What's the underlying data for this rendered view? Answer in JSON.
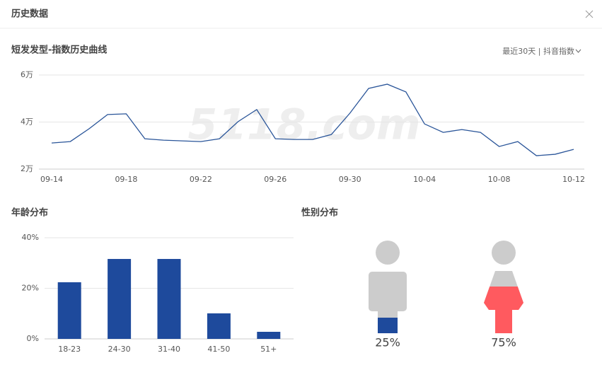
{
  "dialog": {
    "title": "历史数据"
  },
  "chart_data": [
    {
      "type": "line",
      "title": "短发发型-指数历史曲线",
      "period_selector": "最近30天 | 抖音指数",
      "watermark": "5118.com",
      "categories": [
        "09-14",
        null,
        null,
        null,
        "09-18",
        null,
        null,
        null,
        "09-22",
        null,
        null,
        null,
        "09-26",
        null,
        null,
        null,
        "09-30",
        null,
        null,
        null,
        "10-04",
        null,
        null,
        null,
        "10-08",
        null,
        null,
        null,
        "10-12"
      ],
      "series": [
        {
          "color": "#2a5599",
          "values": [
            31100,
            31700,
            37100,
            43200,
            43500,
            32900,
            32300,
            32000,
            31700,
            32900,
            40200,
            45300,
            32900,
            32600,
            32600,
            34700,
            43800,
            54300,
            56100,
            52800,
            39200,
            35600,
            36800,
            35600,
            29600,
            31700,
            25700,
            26300,
            28400
          ]
        }
      ],
      "ylim": [
        20000,
        60000
      ],
      "yticks": [
        {
          "value": 20000,
          "label": "2万"
        },
        {
          "value": 40000,
          "label": "4万"
        },
        {
          "value": 60000,
          "label": "6万"
        }
      ],
      "grid": true
    },
    {
      "type": "bar",
      "title": "年龄分布",
      "categories": [
        "18-23",
        "24-30",
        "31-40",
        "41-50",
        "51+"
      ],
      "values": [
        22.4,
        31.6,
        31.6,
        10.1,
        2.8
      ],
      "color": "#1e4a9c",
      "ylim": [
        0,
        40
      ],
      "yticks": [
        {
          "value": 0,
          "label": "0%"
        },
        {
          "value": 20,
          "label": "20%"
        },
        {
          "value": 40,
          "label": "40%"
        }
      ],
      "grid": true
    },
    {
      "type": "gender",
      "title": "性别分布",
      "values": [
        25,
        75
      ],
      "value_labels": [
        "25%",
        "75%"
      ],
      "colors": [
        "#1e4a9c",
        "#ff5a5f"
      ],
      "base_color": "#cccccc"
    }
  ]
}
